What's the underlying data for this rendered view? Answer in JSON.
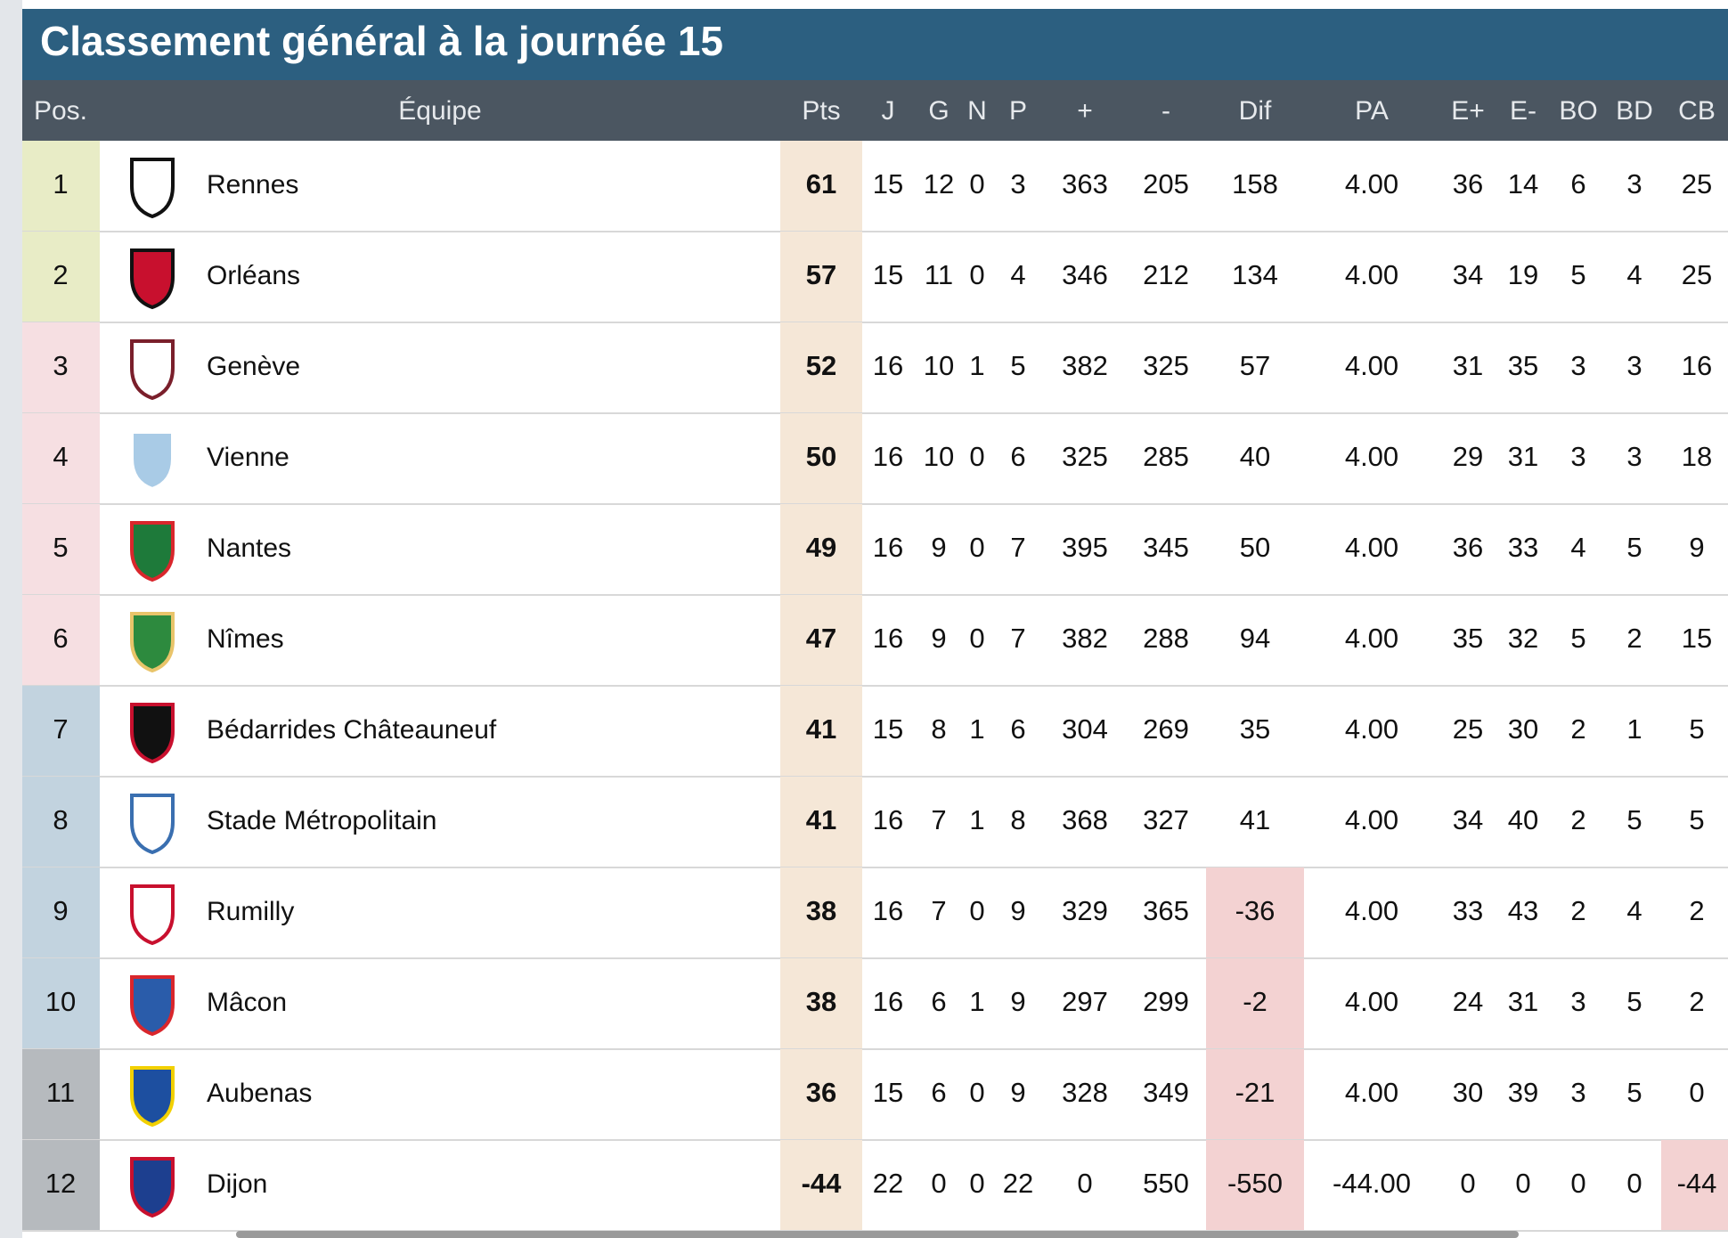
{
  "header": {
    "title": "Classement général à la journée 15"
  },
  "table": {
    "columns": [
      "Pos.",
      "Équipe",
      "Pts",
      "J",
      "G",
      "N",
      "P",
      "+",
      "-",
      "Dif",
      "PA",
      "E+",
      "E-",
      "BO",
      "BD",
      "CB"
    ],
    "rows": [
      [
        "1",
        "Rennes",
        "61",
        "15",
        "12",
        "0",
        "3",
        "363",
        "205",
        "158",
        "4.00",
        "36",
        "14",
        "6",
        "3",
        "25"
      ],
      [
        "2",
        "Orléans",
        "57",
        "15",
        "11",
        "0",
        "4",
        "346",
        "212",
        "134",
        "4.00",
        "34",
        "19",
        "5",
        "4",
        "25"
      ],
      [
        "3",
        "Genève",
        "52",
        "16",
        "10",
        "1",
        "5",
        "382",
        "325",
        "57",
        "4.00",
        "31",
        "35",
        "3",
        "3",
        "16"
      ],
      [
        "4",
        "Vienne",
        "50",
        "16",
        "10",
        "0",
        "6",
        "325",
        "285",
        "40",
        "4.00",
        "29",
        "31",
        "3",
        "3",
        "18"
      ],
      [
        "5",
        "Nantes",
        "49",
        "16",
        "9",
        "0",
        "7",
        "395",
        "345",
        "50",
        "4.00",
        "36",
        "33",
        "4",
        "5",
        "9"
      ],
      [
        "6",
        "Nîmes",
        "47",
        "16",
        "9",
        "0",
        "7",
        "382",
        "288",
        "94",
        "4.00",
        "35",
        "32",
        "5",
        "2",
        "15"
      ],
      [
        "7",
        "Bédarrides Châteauneuf",
        "41",
        "15",
        "8",
        "1",
        "6",
        "304",
        "269",
        "35",
        "4.00",
        "25",
        "30",
        "2",
        "1",
        "5"
      ],
      [
        "8",
        "Stade Métropolitain",
        "41",
        "16",
        "7",
        "1",
        "8",
        "368",
        "327",
        "41",
        "4.00",
        "34",
        "40",
        "2",
        "5",
        "5"
      ],
      [
        "9",
        "Rumilly",
        "38",
        "16",
        "7",
        "0",
        "9",
        "329",
        "365",
        "-36",
        "4.00",
        "33",
        "43",
        "2",
        "4",
        "2"
      ],
      [
        "10",
        "Mâcon",
        "38",
        "16",
        "6",
        "1",
        "9",
        "297",
        "299",
        "-2",
        "4.00",
        "24",
        "31",
        "3",
        "5",
        "2"
      ],
      [
        "11",
        "Aubenas",
        "36",
        "15",
        "6",
        "0",
        "9",
        "328",
        "349",
        "-21",
        "4.00",
        "30",
        "39",
        "3",
        "5",
        "0"
      ],
      [
        "12",
        "Dijon",
        "-44",
        "22",
        "0",
        "0",
        "22",
        "0",
        "550",
        "-550",
        "-44.00",
        "0",
        "0",
        "0",
        "0",
        "-44"
      ]
    ]
  }
}
